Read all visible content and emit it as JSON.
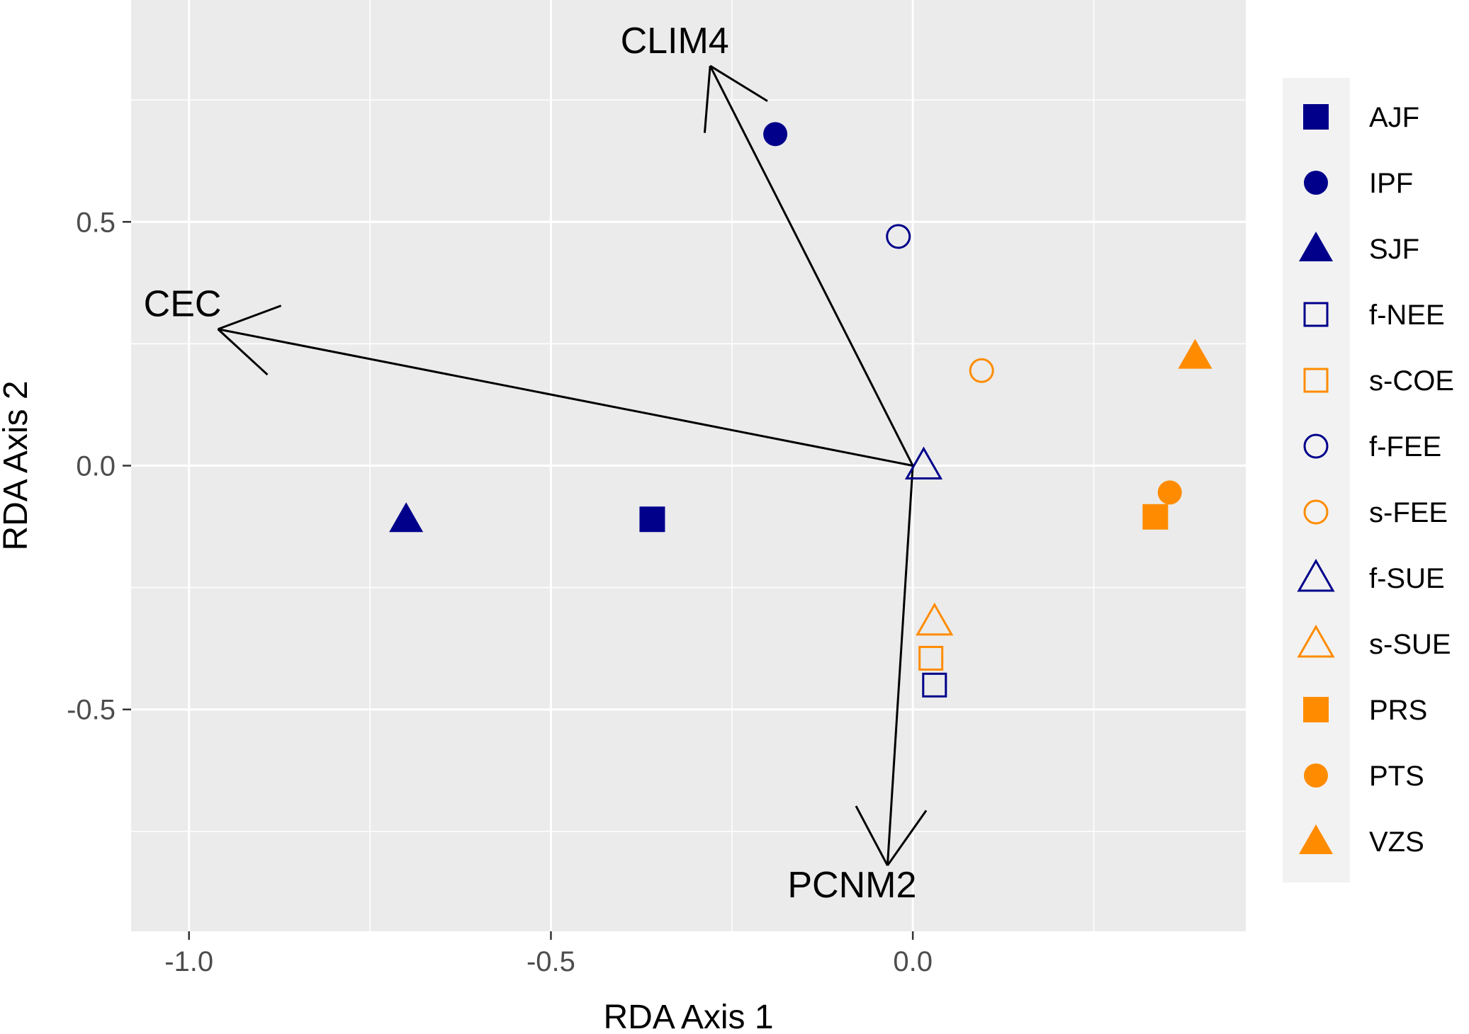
{
  "chart_data": {
    "type": "scatter",
    "title": "",
    "xlabel": "RDA Axis 1",
    "ylabel": "RDA Axis 2",
    "xlim": [
      -1.08,
      0.46
    ],
    "ylim": [
      -0.955,
      0.955
    ],
    "x_major_ticks": [
      -1.0,
      -0.5,
      0.0
    ],
    "x_minor_ticks": [
      -0.75,
      -0.25,
      0.25
    ],
    "y_major_ticks": [
      0.5,
      0.0,
      -0.5
    ],
    "y_minor_ticks": [
      0.75,
      0.25,
      -0.25,
      -0.75
    ],
    "x_tick_labels": [
      "-1.0",
      "-0.5",
      "0.0"
    ],
    "y_tick_labels": [
      "0.5",
      "0.0",
      "-0.5"
    ],
    "grid": true,
    "legend_position": "right",
    "colors": {
      "blue": "#00008B",
      "orange": "#FF8C00",
      "panel": "#EBEBEB",
      "grid": "#FFFFFF"
    },
    "points": [
      {
        "name": "AJF",
        "x": -0.36,
        "y": -0.11,
        "shape": "square",
        "filled": true,
        "color": "#00008B"
      },
      {
        "name": "IPF",
        "x": -0.19,
        "y": 0.68,
        "shape": "circle",
        "filled": true,
        "color": "#00008B"
      },
      {
        "name": "SJF",
        "x": -0.7,
        "y": -0.11,
        "shape": "triangle",
        "filled": true,
        "color": "#00008B"
      },
      {
        "name": "f-NEE",
        "x": 0.03,
        "y": -0.45,
        "shape": "square",
        "filled": false,
        "color": "#00008B"
      },
      {
        "name": "s-COE",
        "x": 0.025,
        "y": -0.395,
        "shape": "square",
        "filled": false,
        "color": "#FF8C00"
      },
      {
        "name": "f-FEE",
        "x": -0.02,
        "y": 0.47,
        "shape": "circle",
        "filled": false,
        "color": "#00008B"
      },
      {
        "name": "s-FEE",
        "x": 0.095,
        "y": 0.195,
        "shape": "circle",
        "filled": false,
        "color": "#FF8C00"
      },
      {
        "name": "f-SUE",
        "x": 0.015,
        "y": 0.0,
        "shape": "triangle",
        "filled": false,
        "color": "#00008B"
      },
      {
        "name": "s-SUE",
        "x": 0.03,
        "y": -0.32,
        "shape": "triangle",
        "filled": false,
        "color": "#FF8C00"
      },
      {
        "name": "PRS",
        "x": 0.335,
        "y": -0.105,
        "shape": "square",
        "filled": true,
        "color": "#FF8C00"
      },
      {
        "name": "PTS",
        "x": 0.355,
        "y": -0.055,
        "shape": "circle",
        "filled": true,
        "color": "#FF8C00"
      },
      {
        "name": "VZS",
        "x": 0.39,
        "y": 0.225,
        "shape": "triangle",
        "filled": true,
        "color": "#FF8C00"
      }
    ],
    "arrows": [
      {
        "label": "CLIM4",
        "x": -0.28,
        "y": 0.82
      },
      {
        "label": "CEC",
        "x": -0.96,
        "y": 0.28
      },
      {
        "label": "PCNM2",
        "x": -0.035,
        "y": -0.82
      }
    ],
    "legend": [
      "AJF",
      "IPF",
      "SJF",
      "f-NEE",
      "s-COE",
      "f-FEE",
      "s-FEE",
      "f-SUE",
      "s-SUE",
      "PRS",
      "PTS",
      "VZS"
    ]
  }
}
